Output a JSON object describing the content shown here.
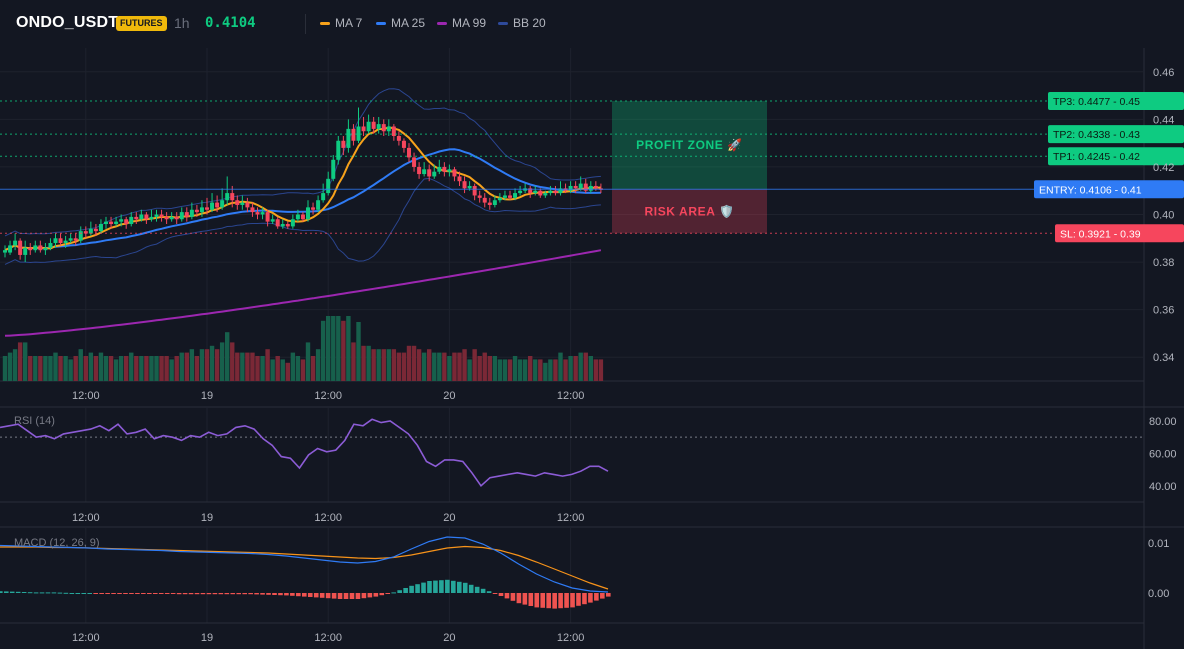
{
  "header": {
    "symbol": "ONDO_USDT",
    "badge": "FUTURES",
    "interval": "1h",
    "last_price": "0.4104",
    "indicators": [
      {
        "label": "MA 7",
        "color": "#f7a21b"
      },
      {
        "label": "MA 25",
        "color": "#2f7bf5"
      },
      {
        "label": "MA 99",
        "color": "#9c27b0"
      },
      {
        "label": "BB 20",
        "color": "#2e4a9b"
      }
    ]
  },
  "colors": {
    "up": "#0ecb81",
    "down": "#f6465d",
    "ma7": "#f7a21b",
    "ma25": "#2f7bf5",
    "ma99": "#9c27b0",
    "bb": "#2e4a9b",
    "rsi": "#8c5cd6",
    "macd": "#2f7bf5",
    "signal": "#f7931a",
    "hist_up": "#26a69a",
    "hist_down": "#ef5350"
  },
  "chart_data": [
    {
      "type": "candlestick",
      "name": "price",
      "time_labels": [
        "12:00",
        "19",
        "12:00",
        "20",
        "12:00"
      ],
      "time_label_index": [
        16,
        40,
        64,
        88,
        112
      ],
      "ylim": [
        0.33,
        0.47
      ],
      "y_ticks": [
        "0.46",
        "0.44",
        "0.42",
        "0.40",
        "0.38",
        "0.36",
        "0.34"
      ],
      "y_tick_values": [
        0.46,
        0.44,
        0.42,
        0.4,
        0.38,
        0.36,
        0.34
      ],
      "candles": [
        [
          0.384,
          0.385,
          0.382,
          0.387
        ],
        [
          0.384,
          0.387,
          0.383,
          0.389
        ],
        [
          0.387,
          0.389,
          0.385,
          0.392
        ],
        [
          0.389,
          0.383,
          0.381,
          0.39
        ],
        [
          0.383,
          0.386,
          0.38,
          0.389
        ],
        [
          0.386,
          0.385,
          0.383,
          0.388
        ],
        [
          0.385,
          0.387,
          0.384,
          0.389
        ],
        [
          0.387,
          0.385,
          0.384,
          0.389
        ],
        [
          0.385,
          0.386,
          0.383,
          0.388
        ],
        [
          0.386,
          0.388,
          0.385,
          0.39
        ],
        [
          0.388,
          0.39,
          0.386,
          0.392
        ],
        [
          0.39,
          0.388,
          0.387,
          0.392
        ],
        [
          0.388,
          0.389,
          0.386,
          0.391
        ],
        [
          0.389,
          0.39,
          0.388,
          0.392
        ],
        [
          0.39,
          0.389,
          0.387,
          0.392
        ],
        [
          0.389,
          0.393,
          0.388,
          0.395
        ],
        [
          0.393,
          0.392,
          0.39,
          0.395
        ],
        [
          0.392,
          0.394,
          0.391,
          0.397
        ],
        [
          0.394,
          0.393,
          0.391,
          0.396
        ],
        [
          0.393,
          0.396,
          0.392,
          0.398
        ],
        [
          0.396,
          0.397,
          0.394,
          0.399
        ],
        [
          0.397,
          0.396,
          0.394,
          0.399
        ],
        [
          0.396,
          0.397,
          0.395,
          0.399
        ],
        [
          0.397,
          0.398,
          0.395,
          0.4
        ],
        [
          0.398,
          0.396,
          0.394,
          0.399
        ],
        [
          0.396,
          0.399,
          0.395,
          0.401
        ],
        [
          0.399,
          0.398,
          0.396,
          0.401
        ],
        [
          0.398,
          0.4,
          0.397,
          0.402
        ],
        [
          0.4,
          0.398,
          0.396,
          0.401
        ],
        [
          0.398,
          0.399,
          0.397,
          0.402
        ],
        [
          0.399,
          0.4,
          0.397,
          0.402
        ],
        [
          0.4,
          0.399,
          0.397,
          0.402
        ],
        [
          0.399,
          0.398,
          0.396,
          0.401
        ],
        [
          0.398,
          0.399,
          0.397,
          0.401
        ],
        [
          0.399,
          0.398,
          0.396,
          0.401
        ],
        [
          0.398,
          0.401,
          0.397,
          0.403
        ],
        [
          0.401,
          0.399,
          0.397,
          0.403
        ],
        [
          0.399,
          0.402,
          0.398,
          0.405
        ],
        [
          0.402,
          0.401,
          0.399,
          0.404
        ],
        [
          0.401,
          0.403,
          0.399,
          0.406
        ],
        [
          0.403,
          0.402,
          0.4,
          0.407
        ],
        [
          0.402,
          0.405,
          0.401,
          0.409
        ],
        [
          0.405,
          0.403,
          0.401,
          0.408
        ],
        [
          0.403,
          0.406,
          0.402,
          0.411
        ],
        [
          0.406,
          0.409,
          0.404,
          0.416
        ],
        [
          0.409,
          0.406,
          0.403,
          0.412
        ],
        [
          0.406,
          0.404,
          0.402,
          0.408
        ],
        [
          0.404,
          0.405,
          0.402,
          0.408
        ],
        [
          0.405,
          0.403,
          0.401,
          0.407
        ],
        [
          0.403,
          0.401,
          0.399,
          0.405
        ],
        [
          0.401,
          0.4,
          0.398,
          0.403
        ],
        [
          0.4,
          0.401,
          0.398,
          0.403
        ],
        [
          0.401,
          0.397,
          0.395,
          0.402
        ],
        [
          0.397,
          0.398,
          0.396,
          0.4
        ],
        [
          0.398,
          0.395,
          0.394,
          0.399
        ],
        [
          0.395,
          0.396,
          0.394,
          0.398
        ],
        [
          0.396,
          0.395,
          0.394,
          0.397
        ],
        [
          0.395,
          0.398,
          0.394,
          0.4
        ],
        [
          0.398,
          0.4,
          0.397,
          0.402
        ],
        [
          0.4,
          0.398,
          0.397,
          0.401
        ],
        [
          0.398,
          0.403,
          0.397,
          0.406
        ],
        [
          0.403,
          0.402,
          0.4,
          0.405
        ],
        [
          0.402,
          0.406,
          0.401,
          0.408
        ],
        [
          0.406,
          0.409,
          0.405,
          0.413
        ],
        [
          0.409,
          0.415,
          0.408,
          0.418
        ],
        [
          0.415,
          0.423,
          0.414,
          0.425
        ],
        [
          0.423,
          0.431,
          0.421,
          0.433
        ],
        [
          0.431,
          0.428,
          0.425,
          0.433
        ],
        [
          0.428,
          0.436,
          0.426,
          0.44
        ],
        [
          0.436,
          0.431,
          0.429,
          0.438
        ],
        [
          0.431,
          0.437,
          0.43,
          0.445
        ],
        [
          0.437,
          0.435,
          0.433,
          0.441
        ],
        [
          0.435,
          0.439,
          0.434,
          0.442
        ],
        [
          0.439,
          0.436,
          0.434,
          0.441
        ],
        [
          0.436,
          0.438,
          0.434,
          0.441
        ],
        [
          0.438,
          0.435,
          0.433,
          0.44
        ],
        [
          0.435,
          0.437,
          0.433,
          0.44
        ],
        [
          0.437,
          0.433,
          0.431,
          0.438
        ],
        [
          0.433,
          0.431,
          0.429,
          0.435
        ],
        [
          0.431,
          0.428,
          0.426,
          0.432
        ],
        [
          0.428,
          0.424,
          0.422,
          0.43
        ],
        [
          0.424,
          0.42,
          0.418,
          0.426
        ],
        [
          0.42,
          0.417,
          0.415,
          0.422
        ],
        [
          0.417,
          0.419,
          0.416,
          0.422
        ],
        [
          0.419,
          0.416,
          0.414,
          0.421
        ],
        [
          0.416,
          0.418,
          0.415,
          0.421
        ],
        [
          0.418,
          0.42,
          0.417,
          0.423
        ],
        [
          0.42,
          0.418,
          0.416,
          0.422
        ],
        [
          0.418,
          0.419,
          0.416,
          0.421
        ],
        [
          0.419,
          0.416,
          0.414,
          0.42
        ],
        [
          0.416,
          0.414,
          0.412,
          0.418
        ],
        [
          0.414,
          0.411,
          0.409,
          0.416
        ],
        [
          0.411,
          0.412,
          0.41,
          0.414
        ],
        [
          0.412,
          0.408,
          0.406,
          0.413
        ],
        [
          0.408,
          0.407,
          0.405,
          0.41
        ],
        [
          0.407,
          0.405,
          0.403,
          0.409
        ],
        [
          0.405,
          0.404,
          0.402,
          0.407
        ],
        [
          0.404,
          0.406,
          0.403,
          0.408
        ],
        [
          0.406,
          0.407,
          0.405,
          0.409
        ],
        [
          0.407,
          0.408,
          0.406,
          0.41
        ],
        [
          0.408,
          0.407,
          0.406,
          0.41
        ],
        [
          0.407,
          0.409,
          0.406,
          0.411
        ],
        [
          0.409,
          0.41,
          0.408,
          0.412
        ],
        [
          0.41,
          0.411,
          0.409,
          0.413
        ],
        [
          0.411,
          0.409,
          0.407,
          0.412
        ],
        [
          0.409,
          0.41,
          0.408,
          0.412
        ],
        [
          0.41,
          0.408,
          0.407,
          0.411
        ],
        [
          0.408,
          0.409,
          0.407,
          0.41
        ],
        [
          0.409,
          0.41,
          0.408,
          0.412
        ],
        [
          0.41,
          0.409,
          0.408,
          0.412
        ],
        [
          0.409,
          0.411,
          0.408,
          0.414
        ],
        [
          0.411,
          0.41,
          0.409,
          0.413
        ],
        [
          0.41,
          0.412,
          0.409,
          0.414
        ],
        [
          0.412,
          0.411,
          0.409,
          0.414
        ],
        [
          0.411,
          0.413,
          0.41,
          0.416
        ],
        [
          0.413,
          0.41,
          0.409,
          0.415
        ],
        [
          0.41,
          0.412,
          0.409,
          0.414
        ],
        [
          0.412,
          0.411,
          0.41,
          0.414
        ],
        [
          0.411,
          0.4104,
          0.409,
          0.413
        ]
      ],
      "ma99": {
        "from": 0.349,
        "to": 0.385
      },
      "levels": [
        {
          "label": "TP3: 0.4477",
          "tick": "0.45",
          "value": 0.4477,
          "color": "#0ecb81"
        },
        {
          "label": "TP2: 0.4338",
          "tick": "0.43",
          "value": 0.4338,
          "color": "#0ecb81"
        },
        {
          "label": "TP1: 0.4245",
          "tick": "0.42",
          "value": 0.4245,
          "color": "#0ecb81"
        },
        {
          "label": "ENTRY: 0.4106",
          "tick": "0.41",
          "value": 0.4106,
          "color": "#2f7bf5"
        },
        {
          "label": "SL: 0.3921",
          "tick": "0.39",
          "value": 0.3921,
          "color": "#f6465d"
        }
      ],
      "zones": {
        "profit": "PROFIT ZONE 🚀",
        "risk": "RISK AREA 🛡️"
      }
    },
    {
      "type": "line",
      "name": "RSI (14)",
      "ylim": [
        30,
        88
      ],
      "y_ticks": [
        "80.00",
        "60.00",
        "40.00"
      ],
      "y_tick_values": [
        80,
        60,
        40
      ],
      "overbought": 70,
      "values": [
        76,
        77,
        78,
        74,
        70,
        71,
        69,
        72,
        73,
        74,
        75,
        77,
        74,
        78,
        72,
        73,
        75,
        69,
        71,
        70,
        68,
        71,
        70,
        73,
        71,
        72,
        76,
        77,
        75,
        69,
        65,
        58,
        57,
        51,
        59,
        63,
        61,
        62,
        68,
        78,
        77,
        81,
        79,
        80,
        76,
        72,
        65,
        55,
        52,
        56,
        56,
        55,
        48,
        40,
        45,
        46,
        47,
        48,
        47,
        46,
        48,
        47,
        46,
        47,
        49,
        52,
        52,
        49
      ]
    },
    {
      "type": "line",
      "name": "MACD (12, 26, 9)",
      "ylim": [
        -0.006,
        0.013
      ],
      "y_ticks": [
        "0.01",
        "0.00"
      ],
      "y_tick_values": [
        0.01,
        0.0
      ],
      "macd": [
        0.0095,
        0.0094,
        0.0093,
        0.0092,
        0.0091,
        0.009,
        0.0088,
        0.0087,
        0.0086,
        0.0085,
        0.0083,
        0.0082,
        0.0081,
        0.008,
        0.0079,
        0.0077,
        0.0074,
        0.007,
        0.0066,
        0.0062,
        0.006,
        0.0063,
        0.0072,
        0.0088,
        0.0103,
        0.0112,
        0.011,
        0.0098,
        0.008,
        0.0058,
        0.0038,
        0.0022,
        0.001,
        0.0004,
        0.0002
      ],
      "signal": [
        0.0092,
        0.0092,
        0.0092,
        0.0091,
        0.0091,
        0.009,
        0.0089,
        0.0088,
        0.0087,
        0.0086,
        0.0085,
        0.0084,
        0.0083,
        0.0082,
        0.0081,
        0.008,
        0.0078,
        0.0076,
        0.0074,
        0.0072,
        0.007,
        0.0069,
        0.0071,
        0.0076,
        0.0083,
        0.009,
        0.0093,
        0.0091,
        0.0085,
        0.0075,
        0.0062,
        0.0048,
        0.0034,
        0.002,
        0.0008
      ]
    }
  ]
}
